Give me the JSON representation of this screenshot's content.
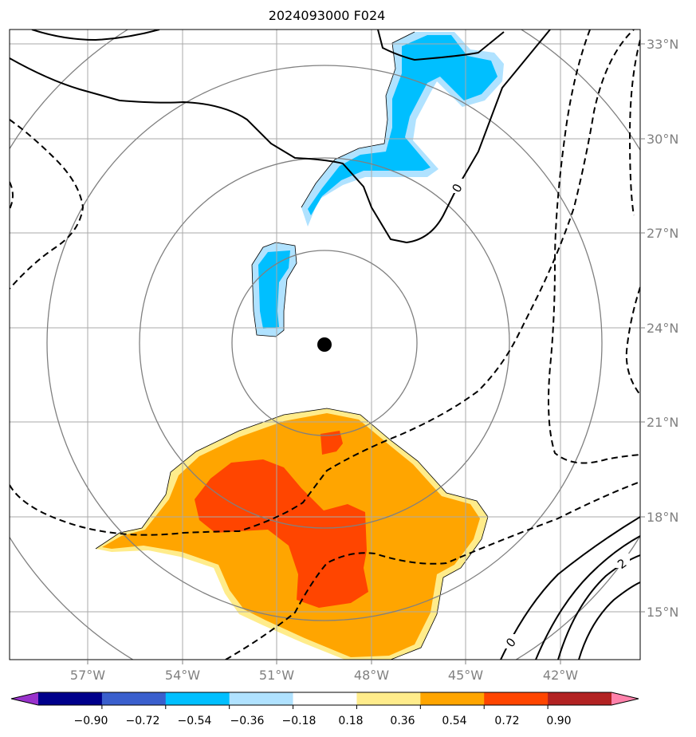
{
  "title": "2024093000 F024",
  "lon_ticks": [
    "57°W",
    "54°W",
    "51°W",
    "48°W",
    "45°W",
    "42°W"
  ],
  "lat_ticks": [
    "33°N",
    "30°N",
    "27°N",
    "24°N",
    "21°N",
    "18°N",
    "15°N"
  ],
  "contour_labels": [
    "0",
    "0",
    "2"
  ],
  "colorbar": {
    "colors": [
      "#9932cc",
      "#00008b",
      "#3a5fcd",
      "#00bfff",
      "#b0e2ff",
      "#ffffff",
      "#ffec8b",
      "#ffa500",
      "#ff4500",
      "#b22222",
      "#ff82ab"
    ],
    "tick_labels": [
      "−0.90",
      "−0.72",
      "−0.54",
      "−0.36",
      "−0.18",
      "0.18",
      "0.36",
      "0.54",
      "0.72",
      "0.90"
    ]
  },
  "legend_colors": {
    "positive_light": "#ffec8b",
    "positive_mid": "#ffa500",
    "positive_strong": "#ff4500",
    "negative_light": "#b0e2ff",
    "negative_mid": "#00bfff"
  },
  "center_marker": "storm-center-dot"
}
